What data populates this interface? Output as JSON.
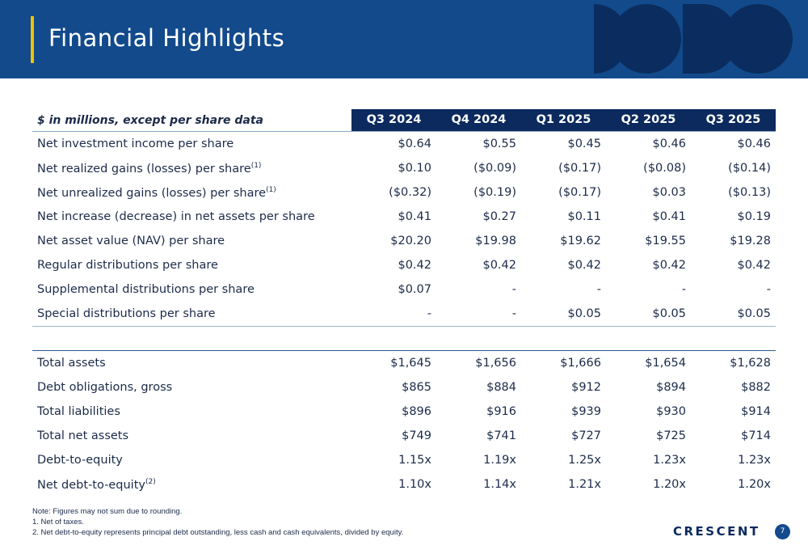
{
  "header": {
    "title": "Financial Highlights"
  },
  "table": {
    "caption": "$ in millions, except per share data",
    "columns": [
      "Q3 2024",
      "Q4 2024",
      "Q1 2025",
      "Q2 2025",
      "Q3 2025"
    ],
    "sections": [
      {
        "rows": [
          {
            "label": "Net investment income per share",
            "values": [
              "$0.64",
              "$0.55",
              "$0.45",
              "$0.46",
              "$0.46"
            ]
          },
          {
            "label": "Net realized gains (losses) per share",
            "note": "(1)",
            "values": [
              "$0.10",
              "($0.09)",
              "($0.17)",
              "($0.08)",
              "($0.14)"
            ]
          },
          {
            "label": "Net unrealized gains (losses) per share",
            "note": "(1)",
            "values": [
              "($0.32)",
              "($0.19)",
              "($0.17)",
              "$0.03",
              "($0.13)"
            ]
          },
          {
            "label": "Net increase (decrease) in net assets per share",
            "values": [
              "$0.41",
              "$0.27",
              "$0.11",
              "$0.41",
              "$0.19"
            ]
          },
          {
            "label": "Net asset value (NAV) per share",
            "values": [
              "$20.20",
              "$19.98",
              "$19.62",
              "$19.55",
              "$19.28"
            ]
          },
          {
            "label": "Regular distributions per share",
            "values": [
              "$0.42",
              "$0.42",
              "$0.42",
              "$0.42",
              "$0.42"
            ]
          },
          {
            "label": "Supplemental distributions per share",
            "values": [
              "$0.07",
              "-",
              "-",
              "-",
              "-"
            ]
          },
          {
            "label": "Special distributions per share",
            "values": [
              "-",
              "-",
              "$0.05",
              "$0.05",
              "$0.05"
            ]
          }
        ]
      },
      {
        "rows": [
          {
            "label": "Total assets",
            "values": [
              "$1,645",
              "$1,656",
              "$1,666",
              "$1,654",
              "$1,628"
            ]
          },
          {
            "label": "Debt obligations, gross",
            "values": [
              "$865",
              "$884",
              "$912",
              "$894",
              "$882"
            ]
          },
          {
            "label": "Total liabilities",
            "values": [
              "$896",
              "$916",
              "$939",
              "$930",
              "$914"
            ]
          },
          {
            "label": "Total net assets",
            "values": [
              "$749",
              "$741",
              "$727",
              "$725",
              "$714"
            ]
          },
          {
            "label": "Debt-to-equity",
            "values": [
              "1.15x",
              "1.19x",
              "1.25x",
              "1.23x",
              "1.23x"
            ]
          },
          {
            "label": "Net debt-to-equity",
            "note": "(2)",
            "values": [
              "1.10x",
              "1.14x",
              "1.21x",
              "1.20x",
              "1.20x"
            ]
          }
        ]
      }
    ]
  },
  "footnotes": [
    "Note: Figures may not sum due to rounding.",
    "1.  Net of taxes.",
    "2.  Net debt-to-equity represents principal debt outstanding, less cash and cash equivalents, divided by equity."
  ],
  "footer": {
    "logo": "CRESCENT",
    "page": "7"
  }
}
